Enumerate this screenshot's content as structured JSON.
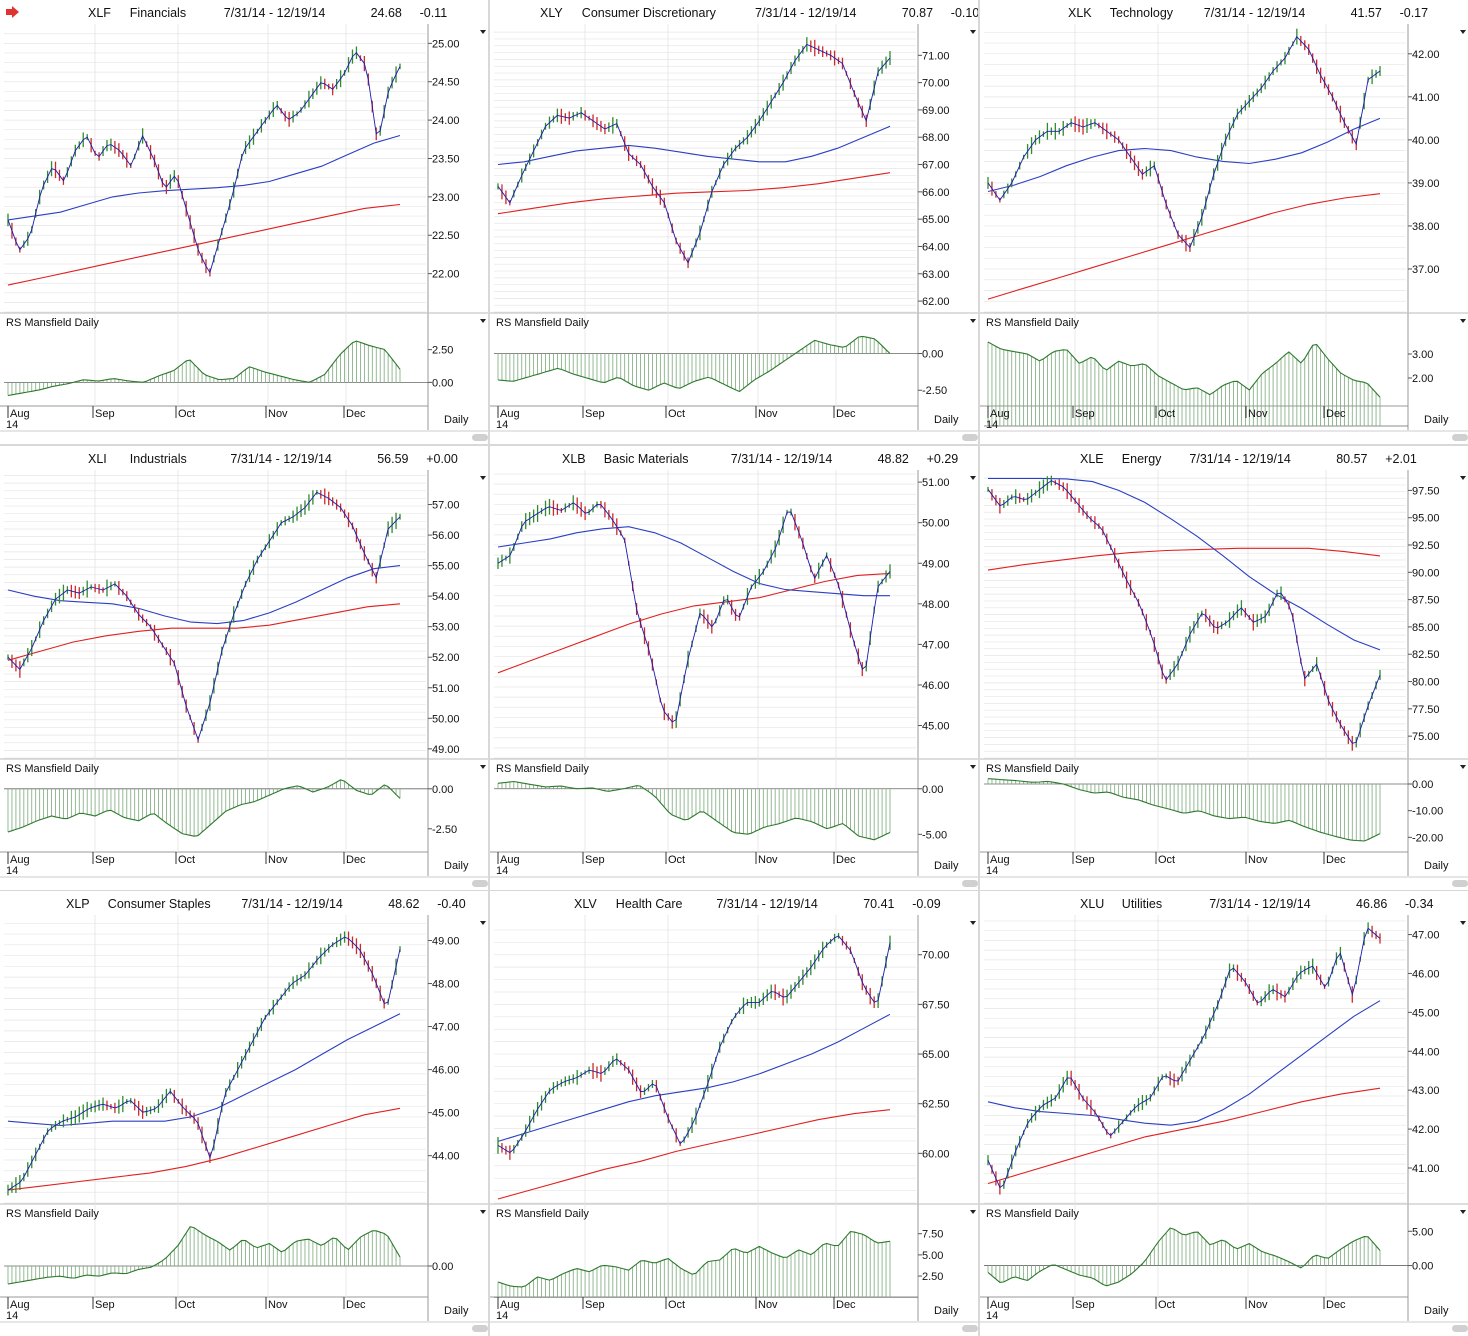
{
  "app": {
    "flag_icon": "red-arrow-icon",
    "accent_color": "#e0322e"
  },
  "common": {
    "rs_label": "RS Mansfield Daily",
    "months": [
      "Aug",
      "Sep",
      "Oct",
      "Nov",
      "Dec"
    ],
    "year": "14",
    "period": "Daily",
    "colors": {
      "price_up": "#2e8b2e",
      "price_down": "#cc2a2a",
      "price_line": "#1b1bb0",
      "ma_fast": "#2a3fc4",
      "ma_slow": "#e02020",
      "rs": "#2d7a2d",
      "grid": "#e6e6e6"
    }
  },
  "chart_data": [
    {
      "type": "line",
      "symbol": "XLF",
      "name": "Financials",
      "range": "7/31/14 - 12/19/14",
      "last": "24.68",
      "change": "-0.11",
      "ylim": [
        21.5,
        25.2
      ],
      "yticks": [
        "22.00",
        "22.50",
        "23.00",
        "23.50",
        "24.00",
        "24.50",
        "25.00"
      ],
      "price": [
        22.7,
        22.3,
        22.5,
        23.1,
        23.4,
        23.2,
        23.6,
        23.8,
        23.5,
        23.7,
        23.6,
        23.4,
        23.8,
        23.5,
        23.1,
        23.3,
        22.8,
        22.3,
        22.0,
        22.5,
        23.0,
        23.6,
        23.8,
        24.0,
        24.2,
        24.0,
        24.1,
        24.3,
        24.5,
        24.4,
        24.6,
        24.9,
        24.7,
        23.7,
        24.4,
        24.7
      ],
      "ma_fast": [
        22.7,
        22.75,
        22.8,
        22.9,
        23.0,
        23.05,
        23.08,
        23.1,
        23.12,
        23.15,
        23.2,
        23.3,
        23.4,
        23.55,
        23.7,
        23.8
      ],
      "ma_slow": [
        21.85,
        21.95,
        22.05,
        22.15,
        22.25,
        22.35,
        22.45,
        22.55,
        22.65,
        22.75,
        22.85,
        22.9
      ],
      "rs_ylim": [
        -1.5,
        4.0
      ],
      "rs_ticks": [
        "0.00",
        "2.50"
      ],
      "rs": [
        -1.0,
        -0.8,
        -0.6,
        -0.3,
        -0.1,
        0.2,
        0.1,
        0.3,
        0.1,
        0.0,
        0.5,
        0.9,
        1.8,
        0.6,
        0.2,
        0.3,
        1.2,
        0.8,
        0.5,
        0.2,
        0.0,
        0.6,
        2.1,
        3.2,
        2.8,
        2.5,
        1.0
      ]
    },
    {
      "type": "line",
      "symbol": "XLY",
      "name": "Consumer Discretionary",
      "range": "7/31/14 - 12/19/14",
      "last": "70.87",
      "change": "-0.10",
      "ylim": [
        61.6,
        72.0
      ],
      "yticks": [
        "62.00",
        "63.00",
        "64.00",
        "65.00",
        "66.00",
        "67.00",
        "68.00",
        "69.00",
        "70.00",
        "71.00"
      ],
      "price": [
        66.2,
        65.6,
        66.6,
        67.5,
        68.4,
        68.8,
        68.7,
        68.9,
        68.6,
        68.3,
        68.5,
        67.4,
        67.0,
        66.2,
        65.6,
        64.2,
        63.4,
        64.5,
        66.0,
        67.0,
        67.6,
        68.0,
        68.6,
        69.3,
        70.0,
        70.8,
        71.4,
        71.2,
        71.0,
        70.7,
        69.6,
        68.6,
        70.4,
        70.9
      ],
      "ma_fast": [
        67.0,
        67.1,
        67.3,
        67.5,
        67.6,
        67.7,
        67.6,
        67.45,
        67.3,
        67.2,
        67.1,
        67.1,
        67.3,
        67.6,
        68.0,
        68.4
      ],
      "ma_slow": [
        65.2,
        65.4,
        65.6,
        65.75,
        65.85,
        65.95,
        66.0,
        66.05,
        66.15,
        66.3,
        66.5,
        66.7
      ],
      "rs_ylim": [
        -3.3,
        1.6
      ],
      "rs_ticks": [
        "-2.50",
        "0.00"
      ],
      "rs": [
        -1.8,
        -1.9,
        -1.6,
        -1.3,
        -1.0,
        -1.4,
        -1.7,
        -2.0,
        -1.6,
        -2.2,
        -2.5,
        -2.0,
        -2.4,
        -1.9,
        -1.6,
        -2.1,
        -2.6,
        -1.8,
        -1.2,
        -0.5,
        0.2,
        0.9,
        0.6,
        0.4,
        1.2,
        1.0,
        0.0
      ]
    },
    {
      "type": "line",
      "symbol": "XLK",
      "name": "Technology",
      "range": "7/31/14 - 12/19/14",
      "last": "41.57",
      "change": "-0.17",
      "ylim": [
        36.0,
        42.6
      ],
      "yticks": [
        "37.00",
        "38.00",
        "39.00",
        "40.00",
        "41.00",
        "42.00"
      ],
      "price": [
        39.0,
        38.6,
        39.0,
        39.6,
        40.0,
        40.2,
        40.2,
        40.4,
        40.3,
        40.4,
        40.2,
        40.0,
        39.6,
        39.2,
        39.4,
        38.5,
        37.8,
        37.5,
        38.2,
        39.2,
        40.0,
        40.6,
        40.9,
        41.2,
        41.6,
        41.9,
        42.4,
        42.1,
        41.5,
        41.0,
        40.4,
        39.9,
        41.4,
        41.6
      ],
      "ma_fast": [
        38.8,
        38.95,
        39.15,
        39.4,
        39.6,
        39.75,
        39.8,
        39.75,
        39.6,
        39.5,
        39.45,
        39.55,
        39.7,
        39.95,
        40.25,
        40.5
      ],
      "ma_slow": [
        36.3,
        36.55,
        36.8,
        37.05,
        37.3,
        37.55,
        37.8,
        38.05,
        38.3,
        38.5,
        38.65,
        38.75
      ],
      "rs_ylim": [
        1.0,
        4.0
      ],
      "rs_ticks": [
        "2.00",
        "3.00"
      ],
      "rs": [
        3.5,
        3.2,
        3.1,
        3.0,
        2.7,
        3.1,
        3.2,
        2.6,
        2.9,
        2.3,
        2.7,
        2.5,
        2.6,
        2.1,
        1.8,
        1.5,
        1.6,
        1.3,
        1.7,
        1.9,
        1.5,
        2.2,
        2.6,
        3.1,
        2.6,
        3.5,
        2.8,
        2.2,
        1.9,
        1.8,
        1.2
      ]
    },
    {
      "type": "line",
      "symbol": "XLI",
      "name": "Industrials",
      "range": "7/31/14 - 12/19/14",
      "last": "56.59",
      "change": "+0.00",
      "ylim": [
        48.7,
        58.0
      ],
      "yticks": [
        "49.00",
        "50.00",
        "51.00",
        "52.00",
        "53.00",
        "54.00",
        "55.00",
        "56.00",
        "57.00"
      ],
      "price": [
        52.0,
        51.6,
        52.3,
        53.2,
        53.9,
        54.2,
        54.1,
        54.3,
        54.2,
        54.4,
        54.0,
        53.4,
        53.0,
        52.4,
        51.8,
        50.4,
        49.3,
        50.5,
        52.2,
        53.4,
        54.4,
        55.2,
        55.8,
        56.4,
        56.6,
        56.9,
        57.4,
        57.2,
        56.9,
        56.3,
        55.4,
        54.6,
        56.2,
        56.6
      ],
      "ma_fast": [
        54.2,
        54.0,
        53.85,
        53.8,
        53.75,
        53.6,
        53.35,
        53.15,
        53.1,
        53.2,
        53.45,
        53.8,
        54.2,
        54.6,
        54.9,
        55.0
      ],
      "ma_slow": [
        51.9,
        52.2,
        52.5,
        52.7,
        52.85,
        52.95,
        52.95,
        52.95,
        53.05,
        53.25,
        53.45,
        53.65,
        53.75
      ],
      "rs_ylim": [
        -3.7,
        0.8
      ],
      "rs_ticks": [
        "-2.50",
        "0.00"
      ],
      "rs": [
        -2.7,
        -2.4,
        -2.0,
        -1.7,
        -1.9,
        -1.5,
        -1.7,
        -1.3,
        -1.8,
        -2.0,
        -1.5,
        -2.2,
        -2.8,
        -3.0,
        -2.2,
        -1.4,
        -1.0,
        -0.8,
        -0.4,
        0.0,
        0.2,
        -0.2,
        0.1,
        0.6,
        -0.1,
        -0.4,
        0.3,
        -0.6
      ]
    },
    {
      "type": "line",
      "symbol": "XLB",
      "name": "Basic Materials",
      "range": "7/31/14 - 12/19/14",
      "last": "48.82",
      "change": "+0.29",
      "ylim": [
        44.2,
        51.2
      ],
      "yticks": [
        "45.00",
        "46.00",
        "47.00",
        "48.00",
        "49.00",
        "50.00",
        "51.00"
      ],
      "price": [
        49.0,
        49.2,
        50.0,
        50.2,
        50.4,
        50.3,
        50.5,
        50.2,
        50.5,
        50.1,
        49.6,
        47.8,
        46.8,
        45.4,
        45.0,
        46.6,
        47.8,
        47.4,
        48.2,
        47.6,
        48.4,
        48.8,
        49.4,
        50.4,
        49.6,
        48.6,
        49.2,
        48.4,
        47.2,
        46.2,
        48.4,
        48.8
      ],
      "ma_fast": [
        49.4,
        49.5,
        49.6,
        49.75,
        49.85,
        49.9,
        49.75,
        49.5,
        49.15,
        48.8,
        48.5,
        48.35,
        48.3,
        48.25,
        48.2,
        48.2
      ],
      "ma_slow": [
        46.3,
        46.6,
        46.9,
        47.2,
        47.5,
        47.75,
        47.95,
        48.05,
        48.15,
        48.35,
        48.55,
        48.7,
        48.75
      ],
      "rs_ylim": [
        -6.5,
        1.4
      ],
      "rs_ticks": [
        "-5.00",
        "0.00"
      ],
      "rs": [
        0.6,
        0.8,
        0.5,
        0.2,
        0.3,
        0.0,
        0.1,
        -0.3,
        0.0,
        0.4,
        -0.8,
        -2.8,
        -3.5,
        -2.4,
        -3.6,
        -4.8,
        -5.0,
        -4.2,
        -3.8,
        -3.2,
        -3.6,
        -4.4,
        -3.8,
        -5.2,
        -5.6,
        -4.8
      ]
    },
    {
      "type": "line",
      "symbol": "XLE",
      "name": "Energy",
      "range": "7/31/14 - 12/19/14",
      "last": "80.57",
      "change": "+2.01",
      "ylim": [
        73.0,
        99.0
      ],
      "yticks": [
        "75.00",
        "77.50",
        "80.00",
        "82.50",
        "85.00",
        "87.50",
        "90.00",
        "92.50",
        "95.00",
        "97.50"
      ],
      "price": [
        97.6,
        96.0,
        97.0,
        96.6,
        97.5,
        98.4,
        97.8,
        96.4,
        95.0,
        94.0,
        91.6,
        89.2,
        87.0,
        84.0,
        80.0,
        81.6,
        84.4,
        86.4,
        84.8,
        85.5,
        86.8,
        85.4,
        86.0,
        88.4,
        86.6,
        80.2,
        81.6,
        78.0,
        75.8,
        74.0,
        77.6,
        80.6
      ],
      "ma_fast": [
        98.6,
        98.6,
        98.6,
        98.55,
        98.3,
        97.5,
        96.4,
        94.9,
        93.3,
        91.5,
        89.6,
        88.0,
        86.7,
        85.2,
        83.8,
        82.9
      ],
      "ma_slow": [
        90.2,
        90.7,
        91.1,
        91.5,
        91.8,
        92.0,
        92.1,
        92.2,
        92.2,
        92.2,
        91.9,
        91.5
      ],
      "rs_ylim": [
        -24.0,
        3.0
      ],
      "rs_ticks": [
        "-20.00",
        "-10.00",
        "0.00"
      ],
      "rs": [
        2.0,
        1.6,
        1.2,
        0.6,
        1.0,
        0.0,
        -2.0,
        -3.4,
        -3.0,
        -5.0,
        -6.0,
        -8.0,
        -9.4,
        -11.0,
        -10.0,
        -12.0,
        -13.0,
        -12.4,
        -14.0,
        -14.8,
        -13.6,
        -16.0,
        -18.0,
        -19.6,
        -21.0,
        -21.4,
        -18.6
      ]
    },
    {
      "type": "line",
      "symbol": "XLP",
      "name": "Consumer Staples",
      "range": "7/31/14 - 12/19/14",
      "last": "48.62",
      "change": "-0.40",
      "ylim": [
        42.9,
        49.5
      ],
      "yticks": [
        "44.00",
        "45.00",
        "46.00",
        "47.00",
        "48.00",
        "49.00"
      ],
      "price": [
        43.2,
        43.4,
        44.0,
        44.6,
        44.8,
        44.9,
        45.1,
        45.2,
        45.1,
        45.3,
        45.0,
        45.1,
        45.5,
        45.1,
        44.8,
        43.9,
        45.4,
        46.0,
        46.6,
        47.2,
        47.6,
        48.0,
        48.2,
        48.6,
        48.9,
        49.1,
        48.8,
        48.2,
        47.4,
        48.8
      ],
      "ma_fast": [
        44.8,
        44.75,
        44.7,
        44.75,
        44.8,
        44.8,
        44.8,
        44.9,
        45.1,
        45.4,
        45.7,
        46.0,
        46.35,
        46.7,
        47.0,
        47.3
      ],
      "ma_slow": [
        43.2,
        43.3,
        43.4,
        43.5,
        43.6,
        43.75,
        43.95,
        44.2,
        44.45,
        44.7,
        44.95,
        45.1
      ],
      "rs_ylim": [
        -2.4,
        4.0
      ],
      "rs_ticks": [
        "0.00"
      ],
      "rs": [
        -1.6,
        -1.4,
        -1.2,
        -1.0,
        -0.9,
        -1.1,
        -0.8,
        -0.9,
        -0.6,
        -0.7,
        -0.3,
        -0.1,
        0.6,
        1.8,
        3.6,
        2.8,
        2.2,
        1.4,
        2.4,
        1.6,
        2.0,
        1.2,
        2.2,
        2.4,
        1.8,
        2.6,
        1.4,
        2.6,
        3.2,
        2.8,
        0.8
      ]
    },
    {
      "type": "line",
      "symbol": "XLV",
      "name": "Health Care",
      "range": "7/31/14 - 12/19/14",
      "last": "70.41",
      "change": "-0.09",
      "ylim": [
        57.5,
        71.8
      ],
      "yticks": [
        "60.00",
        "62.50",
        "65.00",
        "67.50",
        "70.00"
      ],
      "price": [
        60.4,
        60.0,
        61.0,
        62.2,
        63.2,
        63.6,
        63.8,
        64.2,
        64.0,
        64.8,
        64.2,
        63.0,
        63.6,
        61.8,
        60.4,
        61.6,
        63.4,
        65.4,
        66.8,
        67.6,
        67.6,
        68.2,
        67.8,
        68.6,
        69.4,
        70.4,
        71.0,
        70.2,
        68.4,
        67.4,
        70.6
      ],
      "ma_fast": [
        60.6,
        61.0,
        61.4,
        61.8,
        62.2,
        62.6,
        62.9,
        63.1,
        63.3,
        63.6,
        64.0,
        64.5,
        65.0,
        65.6,
        66.3,
        67.0
      ],
      "ma_slow": [
        57.7,
        58.2,
        58.7,
        59.2,
        59.6,
        60.1,
        60.5,
        60.9,
        61.3,
        61.7,
        62.0,
        62.2
      ],
      "rs_ylim": [
        0.5,
        9.0
      ],
      "rs_ticks": [
        "2.50",
        "5.00",
        "7.50"
      ],
      "rs": [
        1.8,
        1.3,
        1.2,
        2.4,
        2.0,
        2.8,
        3.4,
        3.0,
        3.8,
        3.6,
        3.2,
        4.4,
        4.0,
        4.6,
        3.4,
        2.6,
        4.2,
        4.4,
        5.8,
        5.2,
        6.0,
        5.2,
        4.6,
        5.6,
        5.0,
        6.4,
        6.0,
        7.8,
        7.4,
        6.4,
        6.6
      ]
    },
    {
      "type": "line",
      "symbol": "XLU",
      "name": "Utilities",
      "range": "7/31/14 - 12/19/14",
      "last": "46.86",
      "change": "-0.34",
      "ylim": [
        40.1,
        47.4
      ],
      "yticks": [
        "41.00",
        "42.00",
        "43.00",
        "44.00",
        "45.00",
        "46.00",
        "47.00"
      ],
      "price": [
        41.2,
        40.4,
        41.4,
        42.2,
        42.6,
        42.8,
        43.4,
        42.8,
        42.4,
        41.8,
        42.2,
        42.6,
        42.8,
        43.4,
        43.2,
        43.8,
        44.4,
        45.2,
        46.2,
        45.8,
        45.2,
        45.6,
        45.4,
        46.0,
        46.2,
        45.6,
        46.6,
        45.4,
        47.2,
        46.9
      ],
      "ma_fast": [
        42.7,
        42.55,
        42.45,
        42.4,
        42.35,
        42.25,
        42.15,
        42.1,
        42.2,
        42.5,
        42.9,
        43.4,
        43.9,
        44.4,
        44.9,
        45.3
      ],
      "ma_slow": [
        40.6,
        40.9,
        41.2,
        41.5,
        41.8,
        42.0,
        42.2,
        42.45,
        42.7,
        42.9,
        43.05
      ],
      "rs_ylim": [
        -4.0,
        6.5
      ],
      "rs_ticks": [
        "0.00",
        "5.00"
      ],
      "rs": [
        -1.0,
        -2.6,
        -1.6,
        -2.2,
        -0.8,
        0.2,
        -0.6,
        -1.4,
        -1.8,
        -3.0,
        -2.4,
        -1.2,
        0.6,
        3.4,
        5.6,
        4.4,
        5.0,
        3.0,
        3.8,
        2.4,
        3.2,
        2.0,
        1.4,
        0.6,
        -0.4,
        1.6,
        1.0,
        2.4,
        3.6,
        4.4,
        2.2
      ]
    }
  ]
}
